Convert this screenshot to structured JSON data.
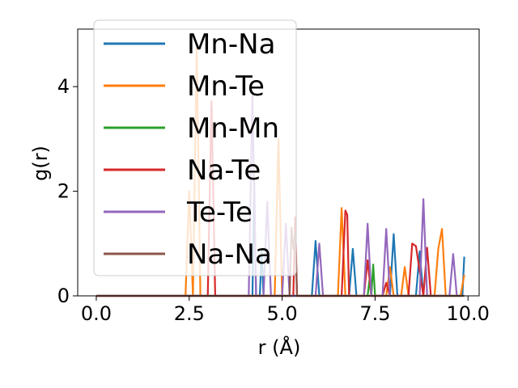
{
  "chart_data": {
    "type": "line",
    "xlabel": "r (Å)",
    "ylabel": "g(r)",
    "xlim": [
      -0.5,
      10.3
    ],
    "ylim": [
      0,
      5.1
    ],
    "xticks": [
      0.0,
      2.5,
      5.0,
      7.5,
      10.0
    ],
    "xtick_labels": [
      "0.0",
      "2.5",
      "5.0",
      "7.5",
      "10.0"
    ],
    "yticks": [
      0,
      2,
      4
    ],
    "ytick_labels": [
      "0",
      "2",
      "4"
    ],
    "grid": false,
    "legend_position": "top-left",
    "series": [
      {
        "name": "Mn-Na",
        "color": "#1f77b4",
        "x": [
          0,
          4.2,
          4.25,
          4.3,
          4.4,
          4.45,
          4.5,
          5.8,
          5.9,
          6.0,
          6.8,
          6.9,
          7.0,
          7.9,
          8.0,
          8.1,
          8.6,
          8.7,
          8.8,
          9.85,
          9.9
        ],
        "y": [
          0,
          0,
          2.15,
          0,
          0,
          0.85,
          0,
          0,
          1.05,
          0,
          0,
          0.9,
          0,
          0,
          1.18,
          0,
          0,
          0.85,
          0,
          0,
          0.75
        ]
      },
      {
        "name": "Mn-Te",
        "color": "#ff7f0e",
        "x": [
          0,
          2.4,
          2.5,
          2.6,
          2.7,
          2.8,
          4.8,
          4.9,
          5.0,
          5.1,
          6.5,
          6.6,
          6.7,
          7.8,
          7.9,
          8.0,
          8.2,
          8.3,
          8.4,
          9.1,
          9.2,
          9.3,
          9.4,
          9.8,
          9.9
        ],
        "y": [
          0,
          0,
          2.0,
          0,
          4.8,
          0,
          0,
          3.0,
          0,
          0,
          0,
          1.68,
          0,
          0,
          0.55,
          0,
          0,
          0.55,
          0,
          0,
          0.9,
          1.28,
          0,
          0,
          0.4
        ]
      },
      {
        "name": "Mn-Mn",
        "color": "#2ca02c",
        "x": [
          0,
          7.3,
          7.35,
          7.4,
          7.45,
          7.5,
          9.9
        ],
        "y": [
          0,
          0,
          0.3,
          0,
          0.6,
          0,
          0
        ]
      },
      {
        "name": "Na-Te",
        "color": "#d62728",
        "x": [
          0,
          3.0,
          3.1,
          3.2,
          5.3,
          5.35,
          5.4,
          6.6,
          6.7,
          6.75,
          6.8,
          7.2,
          7.3,
          7.4,
          7.7,
          7.8,
          7.9,
          8.4,
          8.5,
          8.6,
          8.8,
          8.9,
          9.0,
          9.3
        ],
        "y": [
          0,
          0,
          3.72,
          0,
          0,
          1.5,
          0,
          0,
          1.63,
          1.55,
          0,
          0,
          0.68,
          0,
          0,
          0.25,
          0,
          0,
          1.0,
          0.95,
          0,
          0.92,
          0,
          0
        ]
      },
      {
        "name": "Te-Te",
        "color": "#9467bd",
        "x": [
          0,
          4.1,
          4.2,
          4.3,
          4.5,
          4.6,
          4.7,
          5.0,
          5.1,
          5.2,
          5.9,
          6.0,
          6.1,
          7.2,
          7.3,
          7.4,
          7.7,
          7.8,
          7.9,
          8.7,
          8.8,
          8.9,
          9.5,
          9.6,
          9.7
        ],
        "y": [
          0,
          0,
          3.85,
          0,
          0,
          1.8,
          0,
          0,
          1.38,
          0,
          0,
          1.0,
          0,
          0,
          1.38,
          0,
          0,
          1.28,
          0,
          0,
          1.85,
          0,
          0,
          0.8,
          0
        ]
      },
      {
        "name": "Na-Na",
        "color": "#8c564b",
        "x": [
          0,
          5.2,
          5.25,
          5.3,
          5.35,
          5.4,
          9.9
        ],
        "y": [
          0,
          0,
          1.3,
          0.9,
          1.2,
          0,
          0
        ]
      }
    ]
  }
}
